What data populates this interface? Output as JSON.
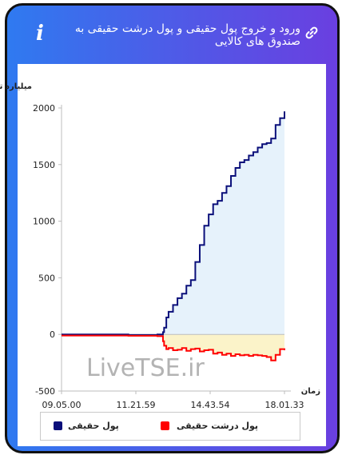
{
  "header": {
    "title": "ورود و خروج پول حقیقی و پول درشت حقیقی به صندوق های کالایی",
    "info_icon": "info-icon",
    "link_icon": "link-icon"
  },
  "watermark": "LiveTSE.ir",
  "colors": {
    "series_real": "#0a0f7a",
    "series_big_real": "#ff0000",
    "area_positive": "#e6f2fb",
    "area_negative": "#fbf3c9"
  },
  "chart_data": {
    "type": "line",
    "ylabel": "میلیارد تومان",
    "xlabel": "زمان",
    "ylim": [
      -500,
      2000
    ],
    "yticks": [
      -500,
      0,
      500,
      1000,
      1500,
      2000
    ],
    "xticks": [
      "09.05.00",
      "11.21.59",
      "14.43.54",
      "18.01.33"
    ],
    "grid": false,
    "legend_position": "bottom",
    "x": [
      0,
      0.3,
      0.43,
      0.455,
      0.46,
      0.47,
      0.48,
      0.5,
      0.52,
      0.54,
      0.56,
      0.58,
      0.6,
      0.62,
      0.64,
      0.66,
      0.68,
      0.7,
      0.72,
      0.74,
      0.76,
      0.78,
      0.8,
      0.82,
      0.84,
      0.86,
      0.88,
      0.9,
      0.92,
      0.94,
      0.96,
      0.98,
      1.0
    ],
    "series": [
      {
        "name": "پول حقیقی",
        "values": [
          0,
          -5,
          0,
          20,
          60,
          150,
          200,
          260,
          320,
          360,
          430,
          480,
          640,
          790,
          960,
          1060,
          1150,
          1180,
          1250,
          1310,
          1400,
          1470,
          1520,
          1540,
          1580,
          1610,
          1650,
          1680,
          1690,
          1730,
          1850,
          1910,
          1970
        ]
      },
      {
        "name": "پول درشت حقیقی",
        "values": [
          -10,
          -12,
          -15,
          -60,
          -100,
          -130,
          -120,
          -140,
          -135,
          -120,
          -145,
          -130,
          -125,
          -150,
          -140,
          -135,
          -170,
          -160,
          -180,
          -170,
          -190,
          -175,
          -185,
          -180,
          -190,
          -180,
          -185,
          -190,
          -200,
          -230,
          -180,
          -130,
          -140
        ]
      }
    ]
  }
}
